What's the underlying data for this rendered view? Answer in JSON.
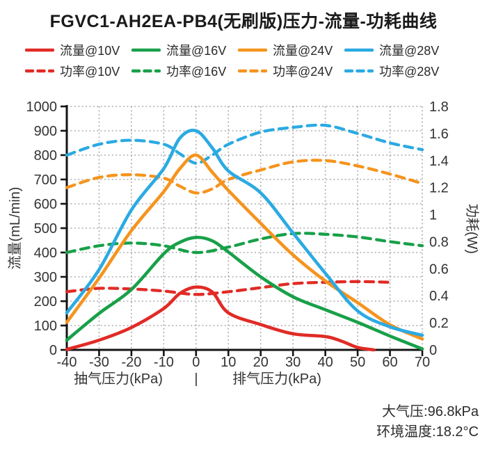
{
  "title": "FGVC1-AH2EA-PB4(无刷版)压力-流量-功耗曲线",
  "colors": {
    "red": "#E12B26",
    "green": "#18A049",
    "orange": "#F5941E",
    "blue": "#2BAAE2",
    "grid": "#ABABAB",
    "axis": "#141414",
    "text": "#2A2A2A"
  },
  "legend": [
    {
      "label": "流量@10V",
      "color": "#E12B26",
      "dashed": false
    },
    {
      "label": "流量@16V",
      "color": "#18A049",
      "dashed": false
    },
    {
      "label": "流量@24V",
      "color": "#F5941E",
      "dashed": false
    },
    {
      "label": "流量@28V",
      "color": "#2BAAE2",
      "dashed": false
    },
    {
      "label": "功率@10V",
      "color": "#E12B26",
      "dashed": true
    },
    {
      "label": "功率@16V",
      "color": "#18A049",
      "dashed": true
    },
    {
      "label": "功率@24V",
      "color": "#F5941E",
      "dashed": true
    },
    {
      "label": "功率@28V",
      "color": "#2BAAE2",
      "dashed": true
    }
  ],
  "chart_data": {
    "type": "line",
    "title": "FGVC1-AH2EA-PB4(无刷版)压力-流量-功耗曲线",
    "grid": true,
    "legend_position": "top",
    "x_label_left": "抽气压力(kPa)",
    "x_label_separator": "|",
    "x_label_right": "排气压力(kPa)",
    "y_left_label": "流量(mL/min)",
    "y_right_label": "功耗(W)",
    "x_range": [
      -40,
      70
    ],
    "y_left_range": [
      0,
      1000
    ],
    "y_right_range": [
      0,
      1.8
    ],
    "x_ticks": [
      -40,
      -30,
      -20,
      -10,
      0,
      10,
      20,
      30,
      40,
      50,
      60,
      70
    ],
    "y_left_ticks": [
      1000,
      900,
      800,
      700,
      600,
      500,
      400,
      300,
      200,
      100,
      0
    ],
    "y_right_ticks": [
      "1.8",
      "1.6",
      "1.4",
      "1.2",
      "1",
      "0.8",
      "0.6",
      "0.4",
      "0.2",
      "0"
    ],
    "series": [
      {
        "name": "功率@10V",
        "axis": "right",
        "dashed": true,
        "color": "#E12B26",
        "x": [
          -40,
          -30,
          -20,
          -10,
          0,
          10,
          20,
          30,
          40,
          50,
          60
        ],
        "y": [
          0.43,
          0.455,
          0.45,
          0.435,
          0.41,
          0.43,
          0.46,
          0.49,
          0.5,
          0.505,
          0.5
        ]
      },
      {
        "name": "功率@16V",
        "axis": "right",
        "dashed": true,
        "color": "#18A049",
        "x": [
          -40,
          -30,
          -20,
          -10,
          0,
          10,
          20,
          30,
          40,
          50,
          60,
          70
        ],
        "y": [
          0.72,
          0.77,
          0.79,
          0.77,
          0.72,
          0.76,
          0.82,
          0.86,
          0.855,
          0.835,
          0.8,
          0.77
        ]
      },
      {
        "name": "功率@24V",
        "axis": "right",
        "dashed": true,
        "color": "#F5941E",
        "x": [
          -40,
          -30,
          -20,
          -10,
          -5,
          0,
          5,
          10,
          20,
          30,
          40,
          50,
          60,
          70
        ],
        "y": [
          1.2,
          1.275,
          1.295,
          1.27,
          1.21,
          1.16,
          1.19,
          1.26,
          1.33,
          1.39,
          1.4,
          1.36,
          1.3,
          1.23
        ]
      },
      {
        "name": "功率@28V",
        "axis": "right",
        "dashed": true,
        "color": "#2BAAE2",
        "x": [
          -40,
          -30,
          -20,
          -10,
          -5,
          0,
          5,
          10,
          20,
          30,
          40,
          50,
          60,
          70
        ],
        "y": [
          1.44,
          1.52,
          1.55,
          1.52,
          1.45,
          1.38,
          1.44,
          1.52,
          1.61,
          1.645,
          1.66,
          1.6,
          1.53,
          1.48
        ]
      },
      {
        "name": "流量@10V",
        "axis": "left",
        "dashed": false,
        "color": "#E12B26",
        "x": [
          -40,
          -30,
          -20,
          -10,
          -5,
          0,
          5,
          10,
          20,
          30,
          40,
          45,
          50,
          55
        ],
        "y": [
          2,
          40,
          92,
          170,
          232,
          258,
          238,
          152,
          104,
          66,
          55,
          36,
          10,
          0
        ]
      },
      {
        "name": "流量@16V",
        "axis": "left",
        "dashed": false,
        "color": "#18A049",
        "x": [
          -40,
          -30,
          -20,
          -10,
          -5,
          0,
          5,
          10,
          20,
          30,
          40,
          50,
          60,
          70
        ],
        "y": [
          40,
          150,
          248,
          395,
          442,
          462,
          448,
          402,
          300,
          218,
          165,
          113,
          57,
          4
        ]
      },
      {
        "name": "流量@24V",
        "axis": "left",
        "dashed": false,
        "color": "#F5941E",
        "x": [
          -40,
          -30,
          -20,
          -10,
          -5,
          0,
          5,
          10,
          20,
          30,
          40,
          50,
          60,
          70
        ],
        "y": [
          113,
          295,
          490,
          650,
          745,
          800,
          730,
          655,
          520,
          390,
          283,
          194,
          103,
          45
        ]
      },
      {
        "name": "流量@28V",
        "axis": "left",
        "dashed": false,
        "color": "#2BAAE2",
        "x": [
          -40,
          -30,
          -20,
          -10,
          -5,
          0,
          5,
          10,
          20,
          30,
          40,
          50,
          60,
          70
        ],
        "y": [
          152,
          330,
          575,
          745,
          870,
          900,
          830,
          735,
          645,
          480,
          315,
          160,
          95,
          60
        ]
      }
    ]
  },
  "annotations": {
    "atm_pressure": "大气压:96.8kPa",
    "ambient_temp": "环境温度:18.2°C"
  }
}
